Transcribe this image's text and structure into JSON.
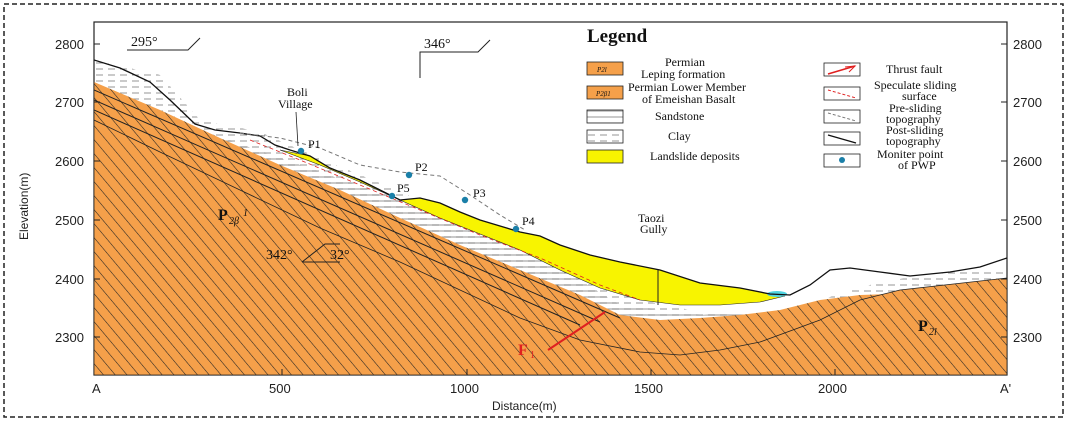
{
  "axes": {
    "y_label": "Elevation(m)",
    "x_label": "Distance(m)",
    "y_ticks": [
      "2800",
      "2700",
      "2600",
      "2500",
      "2400",
      "2300"
    ],
    "x_ticks": [
      "500",
      "1000",
      "1500",
      "2000"
    ],
    "x_start": "A",
    "x_end": "A'"
  },
  "orientations": {
    "left": "295°",
    "mid": "346°",
    "dip": "342°",
    "dip2": "32°"
  },
  "labels": {
    "village_line1": "Boli",
    "village_line2": "Village",
    "gully_line1": "Taozi",
    "gully_line2": "Gully",
    "p2b_main": "P",
    "p2b_sub": "2β",
    "p2b_sup": "1",
    "p2l_main": "P",
    "p2l_sub": "2l",
    "fault_main": "F",
    "fault_sub": "1"
  },
  "points": [
    {
      "name": "P1"
    },
    {
      "name": "P2"
    },
    {
      "name": "P3"
    },
    {
      "name": "P4"
    },
    {
      "name": "P5"
    }
  ],
  "legend": {
    "title": "Legend",
    "swatch1": "P2l",
    "swatch2": "P2β1",
    "permian1_l1": "Permian",
    "permian1_l2": "Leping formation",
    "permian2_l1": "Permian Lower Member",
    "permian2_l2": "of Emeishan Basalt",
    "sandstone": "Sandstone",
    "clay": "Clay",
    "deposits": "Landslide deposits",
    "thrust": "Thrust fault",
    "spec_l1": "Speculate sliding",
    "spec_l2": "surface",
    "pre_l1": "Pre-sliding",
    "pre_l2": "topography",
    "post_l1": "Post-sliding",
    "post_l2": "topography",
    "mon_l1": "Moniter point",
    "mon_l2": "of PWP"
  },
  "colors": {
    "orange": "#f5a04a",
    "yellow": "#f8f400",
    "fault": "#e02020",
    "water": "#4fd3e0",
    "point": "#1a7fa8"
  }
}
